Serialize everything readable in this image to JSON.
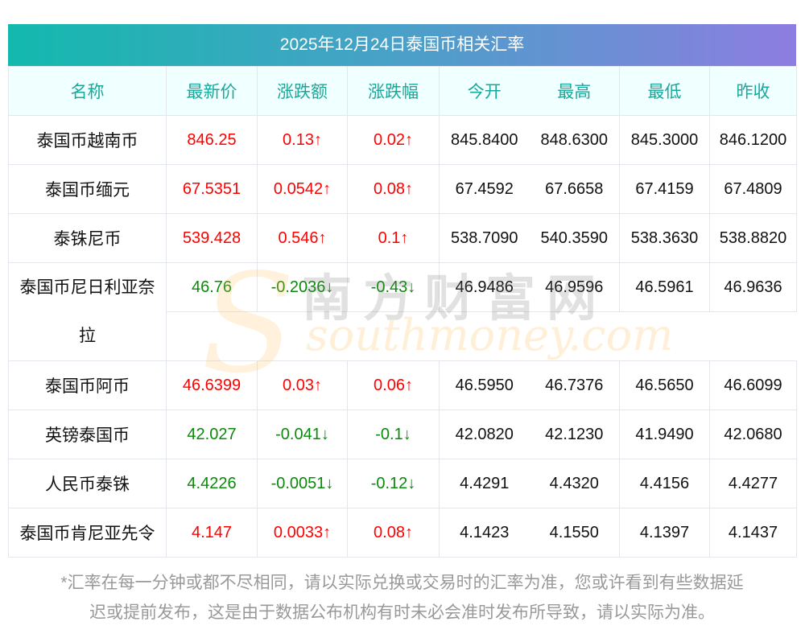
{
  "title": "2025年12月24日泰国币相关汇率",
  "columns": [
    "名称",
    "最新价",
    "涨跌额",
    "涨跌幅",
    "今开",
    "最高",
    "最低",
    "昨收"
  ],
  "colors": {
    "up": "#ff0000",
    "down": "#0a8a0a",
    "header_text": "#1aa89a",
    "header_bg": "#f0ffff"
  },
  "rows": [
    {
      "name": "泰国币越南币",
      "price": "846.25",
      "change": "0.13↑",
      "pct": "0.02↑",
      "dir": "up",
      "open": "845.8400",
      "high": "848.6300",
      "low": "845.3000",
      "prev": "846.1200"
    },
    {
      "name": "泰国币缅元",
      "price": "67.5351",
      "change": "0.0542↑",
      "pct": "0.08↑",
      "dir": "up",
      "open": "67.4592",
      "high": "67.6658",
      "low": "67.4159",
      "prev": "67.4809"
    },
    {
      "name": "泰铢尼币",
      "price": "539.428",
      "change": "0.546↑",
      "pct": "0.1↑",
      "dir": "up",
      "open": "538.7090",
      "high": "540.3590",
      "low": "538.3630",
      "prev": "538.8820"
    },
    {
      "name": "泰国币尼日利亚奈拉",
      "name_line1": "泰国币尼日利亚奈",
      "name_line2": "拉",
      "price": "46.76",
      "change": "-0.2036↓",
      "pct": "-0.43↓",
      "dir": "down",
      "open": "46.9486",
      "high": "46.9596",
      "low": "46.5961",
      "prev": "46.9636"
    },
    {
      "name": "泰国币阿币",
      "price": "46.6399",
      "change": "0.03↑",
      "pct": "0.06↑",
      "dir": "up",
      "open": "46.5950",
      "high": "46.7376",
      "low": "46.5650",
      "prev": "46.6099"
    },
    {
      "name": "英镑泰国币",
      "price": "42.027",
      "change": "-0.041↓",
      "pct": "-0.1↓",
      "dir": "down",
      "open": "42.0820",
      "high": "42.1230",
      "low": "41.9490",
      "prev": "42.0680"
    },
    {
      "name": "人民币泰铢",
      "price": "4.4226",
      "change": "-0.0051↓",
      "pct": "-0.12↓",
      "dir": "down",
      "open": "4.4291",
      "high": "4.4320",
      "low": "4.4156",
      "prev": "4.4277"
    },
    {
      "name": "泰国币肯尼亚先令",
      "price": "4.147",
      "change": "0.0033↑",
      "pct": "0.08↑",
      "dir": "up",
      "open": "4.1423",
      "high": "4.1550",
      "low": "4.1397",
      "prev": "4.1437"
    }
  ],
  "watermark": {
    "cn": "南方财富网",
    "en": "southmoney.com"
  },
  "note": {
    "line1": "*汇率在每一分钟或都不尽相同，请以实际兑换或交易时的汇率为准，您或许看到有些数据延",
    "line2": "迟或提前发布，这是由于数据公布机构有时未必会准时发布所导致，请以实际为准。"
  }
}
